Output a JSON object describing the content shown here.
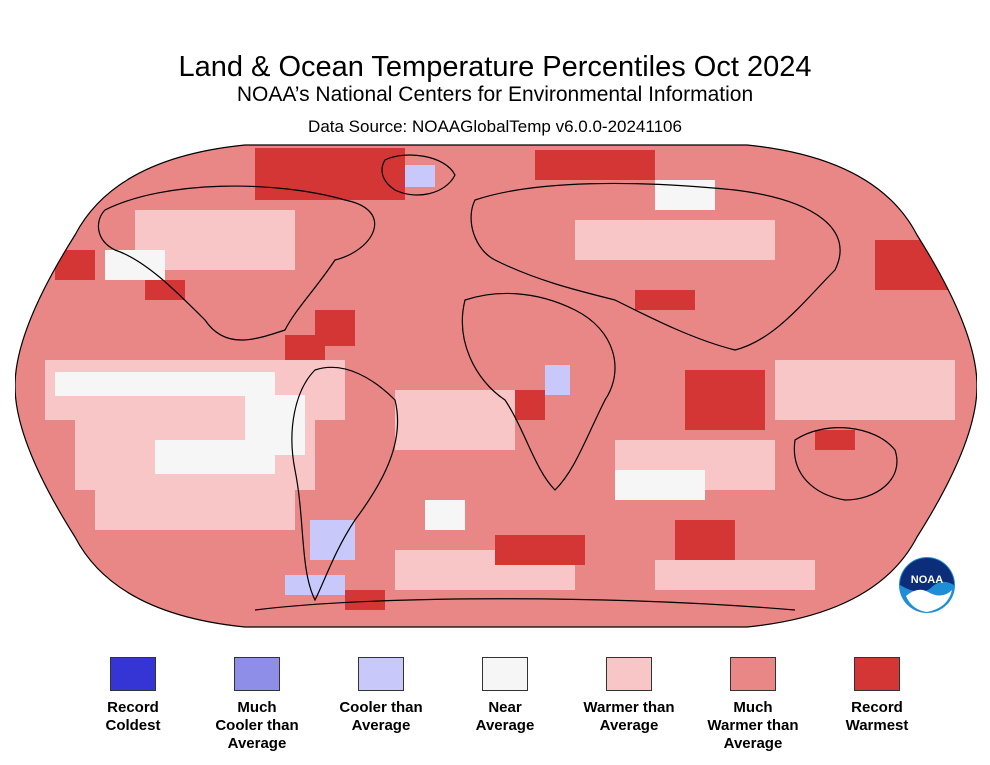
{
  "header": {
    "title": "Land & Ocean Temperature Percentiles Oct 2024",
    "subtitle": "NOAA’s National Centers for Environmental Information",
    "source": "Data Source: NOAAGlobalTemp v6.0.0-20241106"
  },
  "logo": {
    "text": "NOAA",
    "icon": "noaa-logo-icon"
  },
  "legend": [
    {
      "label": "Record\nColdest",
      "color": "#3535d6"
    },
    {
      "label": "Much\nCooler than\nAverage",
      "color": "#8e8ee8"
    },
    {
      "label": "Cooler than\nAverage",
      "color": "#c8c8fa"
    },
    {
      "label": "Near\nAverage",
      "color": "#f6f6f6"
    },
    {
      "label": "Warmer than\nAverage",
      "color": "#f8c6c6"
    },
    {
      "label": "Much\nWarmer than\nAverage",
      "color": "#e98686"
    },
    {
      "label": "Record\nWarmest",
      "color": "#d43636"
    }
  ]
}
